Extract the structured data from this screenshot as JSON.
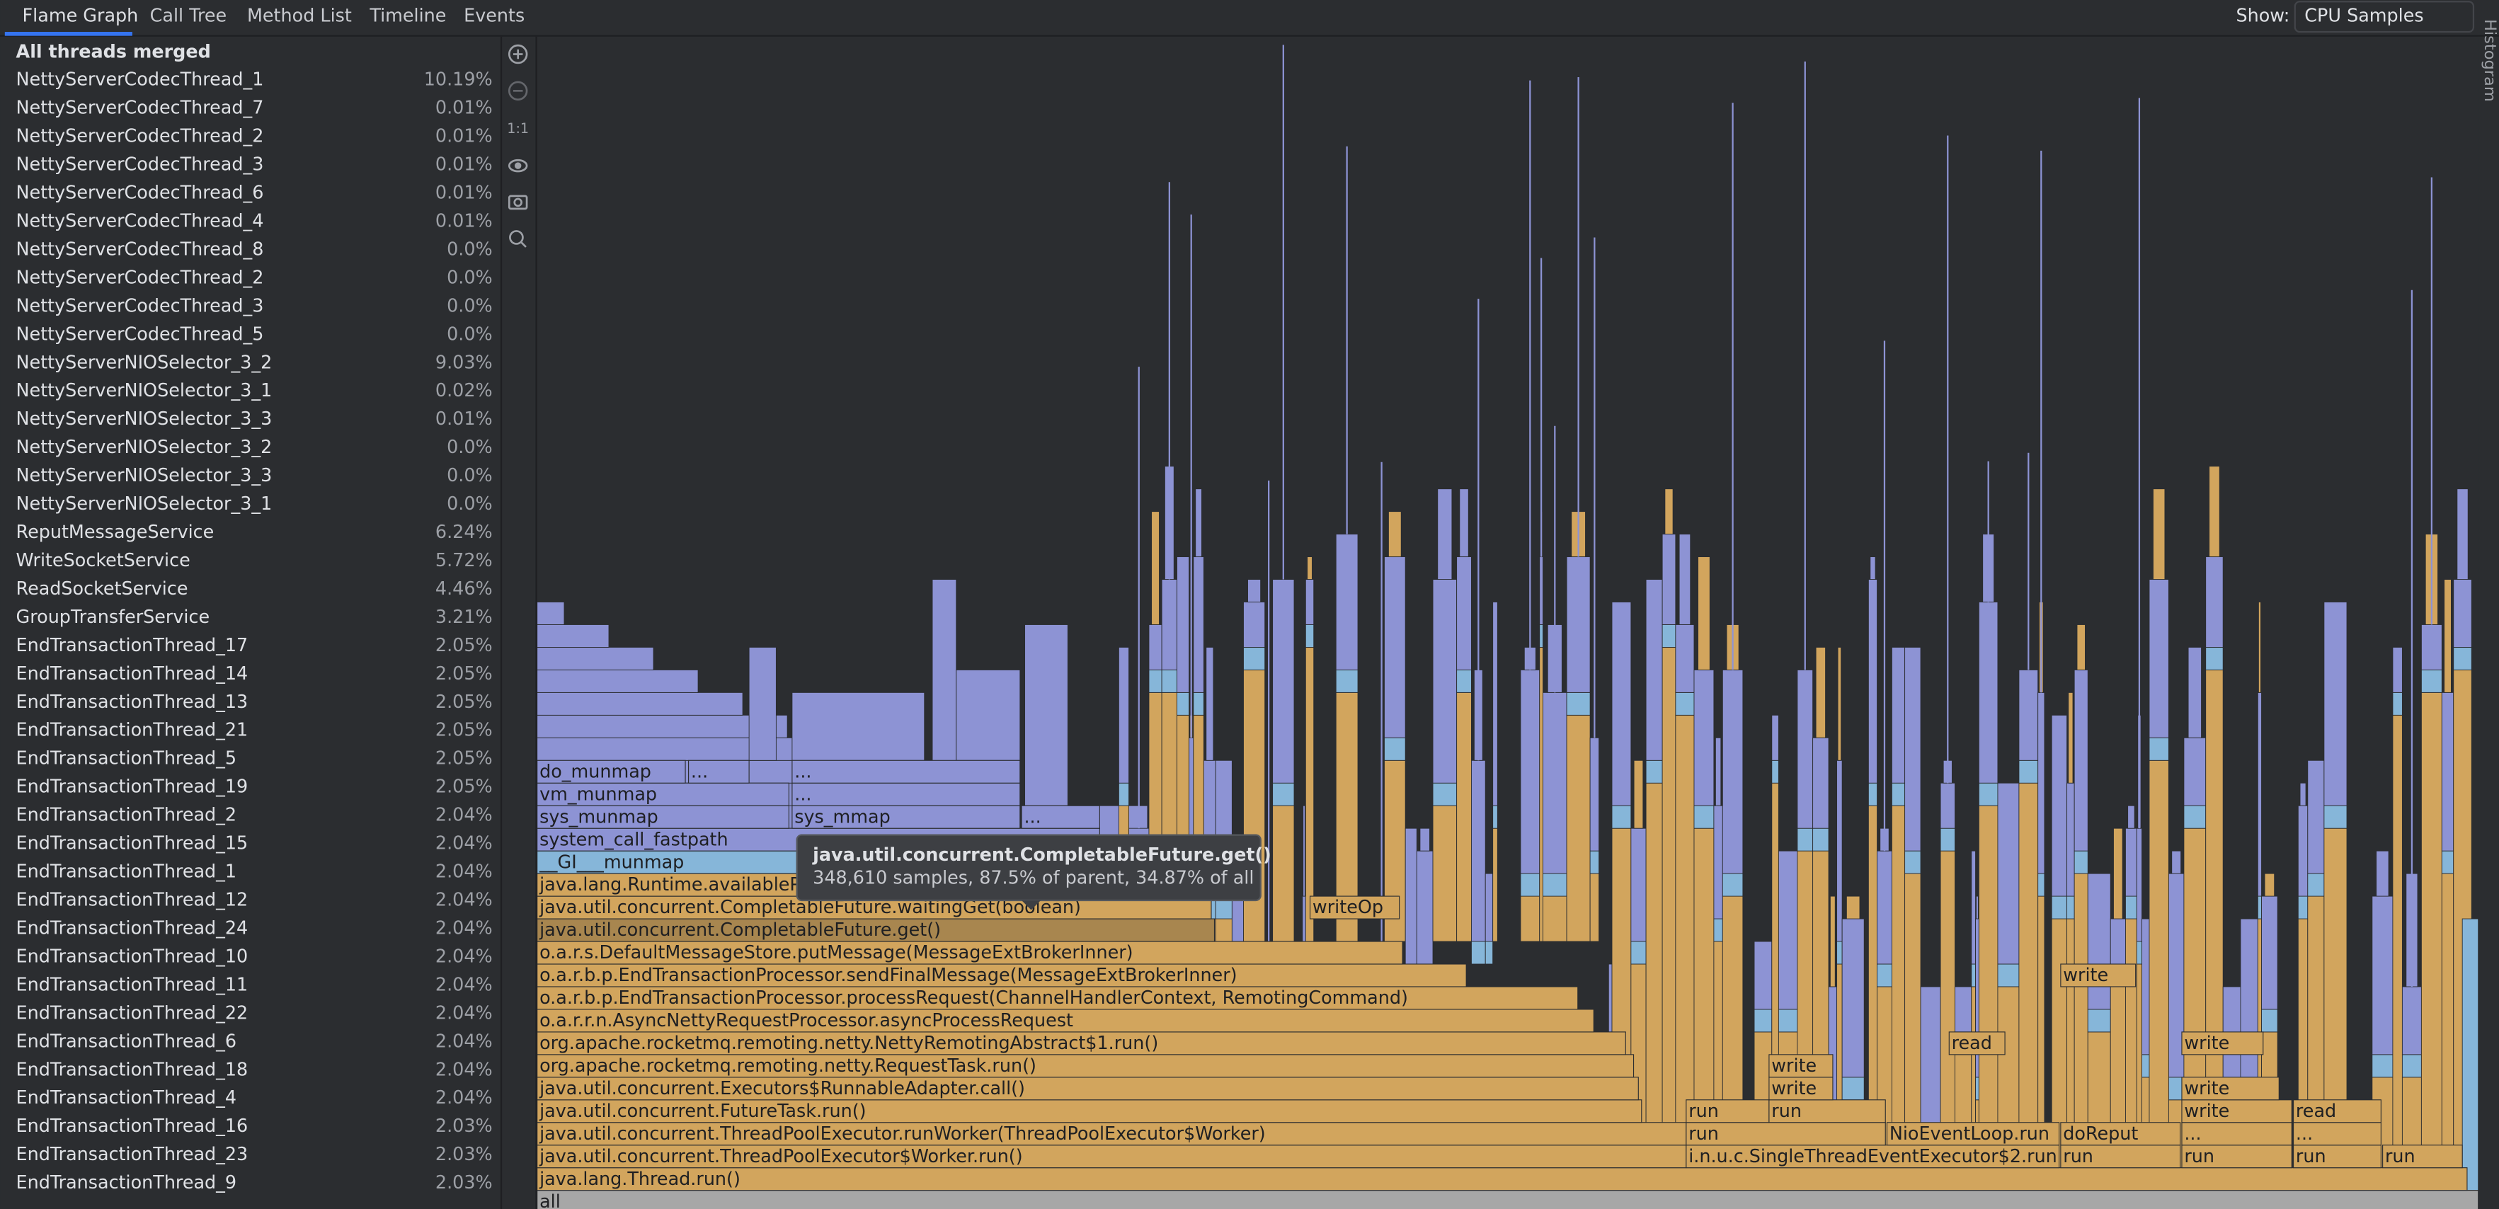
{
  "tabs": [
    "Flame Graph",
    "Call Tree",
    "Method List",
    "Timeline",
    "Events"
  ],
  "show_label": "Show:",
  "show_value": "CPU Samples",
  "side_panel": "Histogram",
  "toolbar": {
    "reset": "1:1"
  },
  "threads": {
    "header": "All threads merged",
    "rows": [
      [
        "NettyServerCodecThread_1",
        "10.19%"
      ],
      [
        "NettyServerCodecThread_7",
        "0.01%"
      ],
      [
        "NettyServerCodecThread_2",
        "0.01%"
      ],
      [
        "NettyServerCodecThread_3",
        "0.01%"
      ],
      [
        "NettyServerCodecThread_6",
        "0.01%"
      ],
      [
        "NettyServerCodecThread_4",
        "0.01%"
      ],
      [
        "NettyServerCodecThread_8",
        "0.0%"
      ],
      [
        "NettyServerCodecThread_2",
        "0.0%"
      ],
      [
        "NettyServerCodecThread_3",
        "0.0%"
      ],
      [
        "NettyServerCodecThread_5",
        "0.0%"
      ],
      [
        "NettyServerNIOSelector_3_2",
        "9.03%"
      ],
      [
        "NettyServerNIOSelector_3_1",
        "0.02%"
      ],
      [
        "NettyServerNIOSelector_3_3",
        "0.01%"
      ],
      [
        "NettyServerNIOSelector_3_2",
        "0.0%"
      ],
      [
        "NettyServerNIOSelector_3_3",
        "0.0%"
      ],
      [
        "NettyServerNIOSelector_3_1",
        "0.0%"
      ],
      [
        "ReputMessageService",
        "6.24%"
      ],
      [
        "WriteSocketService",
        "5.72%"
      ],
      [
        "ReadSocketService",
        "4.46%"
      ],
      [
        "GroupTransferService",
        "3.21%"
      ],
      [
        "EndTransactionThread_17",
        "2.05%"
      ],
      [
        "EndTransactionThread_14",
        "2.05%"
      ],
      [
        "EndTransactionThread_13",
        "2.05%"
      ],
      [
        "EndTransactionThread_21",
        "2.05%"
      ],
      [
        "EndTransactionThread_5",
        "2.05%"
      ],
      [
        "EndTransactionThread_19",
        "2.05%"
      ],
      [
        "EndTransactionThread_2",
        "2.04%"
      ],
      [
        "EndTransactionThread_15",
        "2.04%"
      ],
      [
        "EndTransactionThread_1",
        "2.04%"
      ],
      [
        "EndTransactionThread_12",
        "2.04%"
      ],
      [
        "EndTransactionThread_24",
        "2.04%"
      ],
      [
        "EndTransactionThread_10",
        "2.04%"
      ],
      [
        "EndTransactionThread_11",
        "2.04%"
      ],
      [
        "EndTransactionThread_22",
        "2.04%"
      ],
      [
        "EndTransactionThread_6",
        "2.04%"
      ],
      [
        "EndTransactionThread_18",
        "2.04%"
      ],
      [
        "EndTransactionThread_4",
        "2.04%"
      ],
      [
        "EndTransactionThread_16",
        "2.03%"
      ],
      [
        "EndTransactionThread_23",
        "2.03%"
      ],
      [
        "EndTransactionThread_9",
        "2.03%"
      ]
    ]
  },
  "flame": {
    "frames": [
      "all",
      "java.lang.Thread.run()",
      "java.util.concurrent.ThreadPoolExecutor$Worker.run()",
      "i.n.u.c.SingleThreadEventExecutor$2.run",
      "run",
      "run",
      "run",
      "run",
      "java.util.concurrent.ThreadPoolExecutor.runWorker(ThreadPoolExecutor$Worker)",
      "run",
      "NioEventLoop.run",
      "doReput",
      "...",
      "...",
      "java.util.concurrent.FutureTask.run()",
      "run",
      "run",
      "write",
      "read",
      "java.util.concurrent.Executors$RunnableAdapter.call()",
      "write",
      "write",
      "org.apache.rocketmq.remoting.netty.RequestTask.run()",
      "write",
      "org.apache.rocketmq.remoting.netty.NettyRemotingAbstract$1.run()",
      "read",
      "write",
      "o.a.r.r.n.AsyncNettyRequestProcessor.asyncProcessRequest",
      "o.a.r.b.p.EndTransactionProcessor.processRequest(ChannelHandlerContext, RemotingCommand)",
      "o.a.r.b.p.EndTransactionProcessor.sendFinalMessage(MessageExtBrokerInner)",
      "write",
      "o.a.r.s.DefaultMessageStore.putMessage(MessageExtBrokerInner)",
      "java.util.concurrent.CompletableFuture.get()",
      "java.util.concurrent.CompletableFuture.waitingGet(boolean)",
      "writeOp",
      "java.lang.Runtime.availableProcessors()",
      "__GI___munmap",
      "system_call_fastpath",
      "sys_munmap",
      "sys_mmap",
      "...",
      "vm_munmap",
      "...",
      "do_munmap",
      "...",
      "..."
    ]
  },
  "tooltip": {
    "title": "java.util.concurrent.CompletableFuture.get()",
    "detail": "348,610 samples, 87.5% of parent, 34.87% of all"
  }
}
